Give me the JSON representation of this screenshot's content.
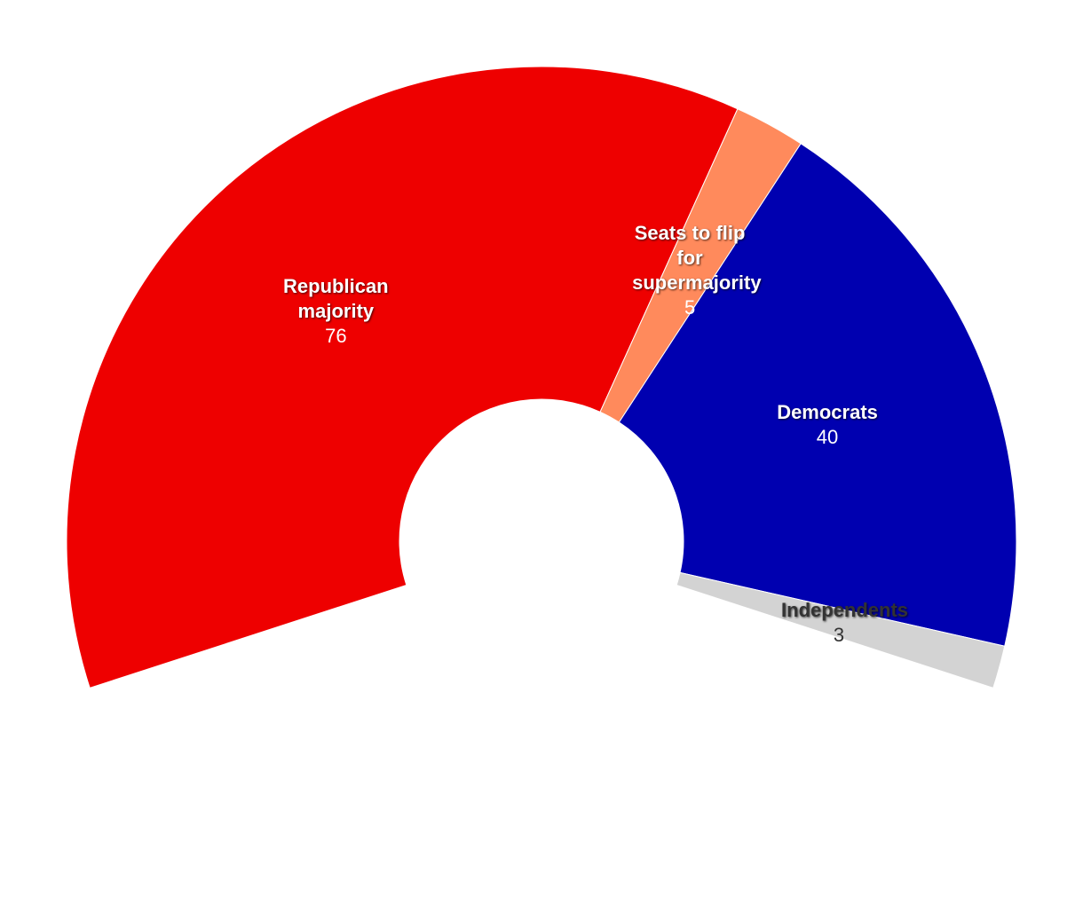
{
  "chart_data": {
    "type": "pie",
    "categories": [
      "Republican majority",
      "Seats to flip for supermajority",
      "Democrats",
      "Independents"
    ],
    "values": [
      76,
      5,
      40,
      3
    ],
    "colors": [
      "#ee0000",
      "#ff8a5c",
      "#0000b0",
      "#d3d3d3"
    ],
    "label_colors": [
      "#ffffff",
      "#ffffff",
      "#ffffff",
      "#333333"
    ]
  }
}
